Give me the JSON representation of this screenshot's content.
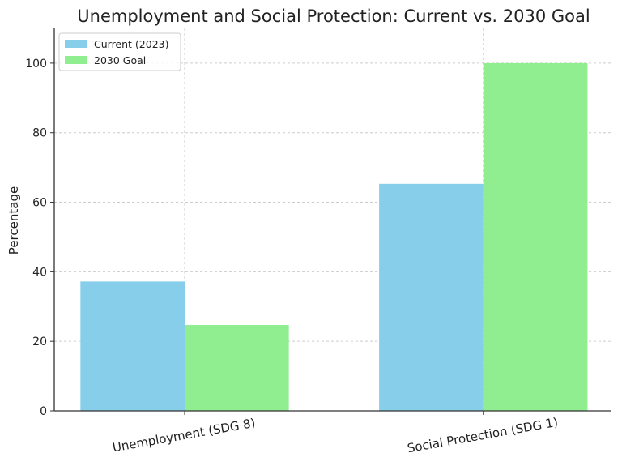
{
  "chart_data": {
    "type": "bar",
    "title": "Unemployment and Social Protection: Current vs. 2030 Goal",
    "xlabel": "",
    "ylabel": "Percentage",
    "categories": [
      "Unemployment (SDG 8)",
      "Social Protection (SDG 1)"
    ],
    "series": [
      {
        "name": "Current (2023)",
        "color": "#87ceeb",
        "values": [
          37.2,
          65.3
        ]
      },
      {
        "name": "2030 Goal",
        "color": "#90ee90",
        "values": [
          24.7,
          100
        ]
      }
    ],
    "ylim": [
      0,
      110
    ],
    "yticks": [
      "0",
      "20",
      "40",
      "60",
      "80",
      "100"
    ],
    "grid": true,
    "legend_position": "top-left"
  }
}
